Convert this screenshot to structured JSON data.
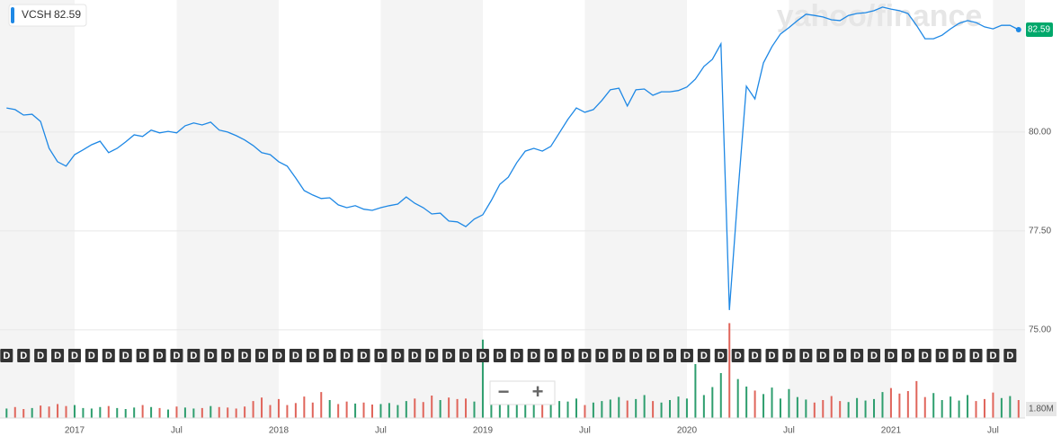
{
  "chart_data": {
    "type": "line",
    "watermark": "yahoo/finance",
    "last_price": 82.59,
    "dividend_marker": "D",
    "zoom_out": "−",
    "zoom_in": "+",
    "categories": [
      null,
      null,
      null,
      null,
      null,
      null,
      null,
      null,
      "2017",
      null,
      null,
      null,
      null,
      null,
      null,
      null,
      null,
      null,
      null,
      null,
      "Jul",
      null,
      null,
      null,
      null,
      null,
      null,
      null,
      null,
      null,
      null,
      null,
      "2018",
      null,
      null,
      null,
      null,
      null,
      null,
      null,
      null,
      null,
      null,
      null,
      "Jul",
      null,
      null,
      null,
      null,
      null,
      null,
      null,
      null,
      null,
      null,
      null,
      "2019",
      null,
      null,
      null,
      null,
      null,
      null,
      null,
      null,
      null,
      null,
      null,
      "Jul",
      null,
      null,
      null,
      null,
      null,
      null,
      null,
      null,
      null,
      null,
      null,
      "2020",
      null,
      null,
      null,
      null,
      null,
      null,
      null,
      null,
      null,
      null,
      null,
      "Jul",
      null,
      null,
      null,
      null,
      null,
      null,
      null,
      null,
      null,
      null,
      null,
      "2021",
      null,
      null,
      null,
      null,
      null,
      null,
      null,
      null,
      null,
      null,
      null,
      "Jul",
      null,
      null,
      null
    ],
    "series": [
      {
        "name": "VCSH",
        "color": "#1e88e5",
        "values": [
          80.61,
          80.57,
          80.43,
          80.45,
          80.27,
          79.59,
          79.25,
          79.14,
          79.43,
          79.55,
          79.68,
          79.77,
          79.48,
          79.59,
          79.75,
          79.93,
          79.89,
          80.05,
          79.98,
          80.02,
          79.98,
          80.16,
          80.23,
          80.18,
          80.25,
          80.05,
          80.0,
          79.91,
          79.8,
          79.66,
          79.48,
          79.43,
          79.25,
          79.14,
          78.84,
          78.52,
          78.41,
          78.32,
          78.34,
          78.16,
          78.09,
          78.14,
          78.05,
          78.02,
          78.09,
          78.14,
          78.18,
          78.36,
          78.2,
          78.09,
          77.93,
          77.95,
          77.75,
          77.73,
          77.61,
          77.8,
          77.91,
          78.27,
          78.68,
          78.86,
          79.23,
          79.52,
          79.59,
          79.52,
          79.64,
          79.98,
          80.32,
          80.61,
          80.5,
          80.57,
          80.8,
          81.07,
          81.11,
          80.66,
          81.07,
          81.09,
          80.93,
          81.02,
          81.02,
          81.05,
          81.14,
          81.34,
          81.66,
          81.84,
          82.23,
          75.5,
          78.45,
          81.16,
          80.84,
          81.75,
          82.16,
          82.48,
          82.64,
          82.82,
          82.98,
          82.95,
          82.91,
          82.84,
          82.82,
          82.95,
          83.0,
          83.02,
          83.07,
          83.16,
          83.11,
          83.07,
          83.0,
          82.7,
          82.36,
          82.36,
          82.45,
          82.61,
          82.75,
          82.82,
          82.77,
          82.66,
          82.61,
          82.7,
          82.7,
          82.59
        ]
      }
    ],
    "volume": {
      "axis": "y2",
      "up_color": "#2e9e6e",
      "down_color": "#e0655b",
      "values": [
        1900000,
        2200000,
        1800000,
        2000000,
        2500000,
        2300000,
        2800000,
        2400000,
        2600000,
        2000000,
        1900000,
        2200000,
        2400000,
        2000000,
        1800000,
        2100000,
        2600000,
        2200000,
        2000000,
        1700000,
        2300000,
        2100000,
        1900000,
        2000000,
        2400000,
        2200000,
        2100000,
        1900000,
        2300000,
        3400000,
        4100000,
        2600000,
        3800000,
        2600000,
        3000000,
        4300000,
        3100000,
        5200000,
        3600000,
        2800000,
        3300000,
        2900000,
        3100000,
        2700000,
        2800000,
        3000000,
        2600000,
        3400000,
        3900000,
        3200000,
        4500000,
        3600000,
        4100000,
        3800000,
        3900000,
        3300000,
        15700000,
        3400000,
        3900000,
        4200000,
        3200000,
        3800000,
        4300000,
        3600000,
        3100000,
        3400000,
        3300000,
        3900000,
        2600000,
        3100000,
        3400000,
        3700000,
        4200000,
        3500000,
        3800000,
        4600000,
        3400000,
        3100000,
        3600000,
        4300000,
        3900000,
        10800000,
        4600000,
        6200000,
        9000000,
        19000000,
        7800000,
        6300000,
        5500000,
        4800000,
        6100000,
        3900000,
        5800000,
        4200000,
        3700000,
        3100000,
        3600000,
        4400000,
        3400000,
        3200000,
        4000000,
        3500000,
        3800000,
        5200000,
        6000000,
        4900000,
        5400000,
        7400000,
        4200000,
        5000000,
        3600000,
        4300000,
        3500000,
        4600000,
        3400000,
        3800000,
        5100000,
        4000000,
        4400000,
        3600000
      ]
    },
    "ylim": [
      72.77,
      83.34
    ],
    "yticks": [
      {
        "value": 75,
        "label": "75.00"
      },
      {
        "value": 77.5,
        "label": "77.50"
      },
      {
        "value": 80,
        "label": "80.00"
      }
    ],
    "y2lim": [
      0,
      83700000
    ],
    "y2ticks": [
      {
        "value": 1800000,
        "label": "1.80M"
      }
    ],
    "grid": true
  }
}
